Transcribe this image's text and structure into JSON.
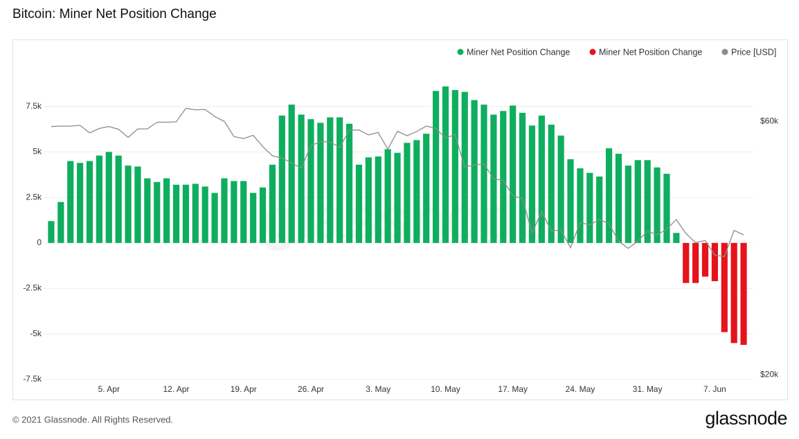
{
  "title": "Bitcoin: Miner Net Position Change",
  "footer": "© 2021 Glassnode. All Rights Reserved.",
  "brand": "glassnode",
  "watermark": "glassnode",
  "chart_data": {
    "type": "bar",
    "categories": [
      null,
      null,
      null,
      null,
      null,
      null,
      "5. Apr",
      null,
      null,
      null,
      null,
      null,
      null,
      "12. Apr",
      null,
      null,
      null,
      null,
      null,
      null,
      "19. Apr",
      null,
      null,
      null,
      null,
      null,
      null,
      "26. Apr",
      null,
      null,
      null,
      null,
      null,
      null,
      "3. May",
      null,
      null,
      null,
      null,
      null,
      null,
      "10. May",
      null,
      null,
      null,
      null,
      null,
      null,
      "17. May",
      null,
      null,
      null,
      null,
      null,
      null,
      "24. May",
      null,
      null,
      null,
      null,
      null,
      null,
      "31. May",
      null,
      null,
      null,
      null,
      null,
      null,
      "7. Jun",
      null,
      null,
      null
    ],
    "series": [
      {
        "name": "Miner Net Position Change",
        "color": "#0fae5f",
        "values": [
          1200,
          2250,
          4500,
          4400,
          4500,
          4800,
          5000,
          4800,
          4250,
          4200,
          3550,
          3350,
          3550,
          3200,
          3200,
          3250,
          3100,
          2750,
          3550,
          3400,
          3400,
          2750,
          3050,
          4300,
          7000,
          7600,
          7050,
          6800,
          6600,
          6900,
          6900,
          6550,
          4300,
          4700,
          4750,
          5150,
          4950,
          5500,
          5650,
          6000,
          8350,
          8600,
          8400,
          8300,
          7850,
          7600,
          7050,
          7250,
          7550,
          7150,
          6450,
          7000,
          6500,
          5900,
          4600,
          4100,
          3850,
          3650,
          5200,
          4900,
          4250,
          4550,
          4550,
          4150,
          3800,
          550,
          null,
          null,
          null,
          null,
          null,
          null,
          null
        ]
      },
      {
        "name": "Miner Net Position Change",
        "color": "#e5141c",
        "values": [
          null,
          null,
          null,
          null,
          null,
          null,
          null,
          null,
          null,
          null,
          null,
          null,
          null,
          null,
          null,
          null,
          null,
          null,
          null,
          null,
          null,
          null,
          null,
          null,
          null,
          null,
          null,
          null,
          null,
          null,
          null,
          null,
          null,
          null,
          null,
          null,
          null,
          null,
          null,
          null,
          null,
          null,
          null,
          null,
          null,
          null,
          null,
          null,
          null,
          null,
          null,
          null,
          null,
          null,
          null,
          null,
          null,
          null,
          null,
          null,
          null,
          null,
          null,
          null,
          null,
          null,
          -2200,
          -2200,
          -1850,
          -2100,
          -4900,
          -5500,
          -5600
        ]
      },
      {
        "name": "Price [USD]",
        "color": "#8c8c8c",
        "type": "line",
        "axis": "y2",
        "values": [
          58700,
          58800,
          58800,
          59000,
          57100,
          58200,
          58700,
          58000,
          56000,
          58100,
          58100,
          59800,
          59800,
          59900,
          63500,
          63100,
          63200,
          61300,
          60000,
          56200,
          55700,
          56500,
          53800,
          51700,
          51200,
          50100,
          49000,
          54000,
          55000,
          54900,
          53600,
          57800,
          57800,
          56600,
          57200,
          53200,
          57500,
          56400,
          57400,
          58800,
          58200,
          55800,
          56700,
          49200,
          49700,
          49900,
          46800,
          46400,
          43500,
          42900,
          37000,
          40600,
          37300,
          37500,
          34700,
          38700,
          38300,
          39200,
          38500,
          35700,
          34600,
          35700,
          37300,
          36700,
          37600,
          39200,
          36900,
          35500,
          35800,
          33600,
          33400,
          37400,
          36700
        ]
      }
    ],
    "ylim": [
      -7500,
      10000
    ],
    "yticks": [
      {
        "value": -7500,
        "label": "-7.5k"
      },
      {
        "value": -5000,
        "label": "-5k"
      },
      {
        "value": -2500,
        "label": "-2.5k"
      },
      0,
      {
        "value": 2500,
        "label": "2.5k"
      },
      {
        "value": 5000,
        "label": "5k"
      },
      {
        "value": 7500,
        "label": "7.5k"
      }
    ],
    "y2lim": [
      19600,
      78000
    ],
    "y2ticks": [
      {
        "value": 20000,
        "label": "$20k"
      },
      {
        "value": 60000,
        "label": "$60k"
      }
    ],
    "y2log": true,
    "grid": true,
    "legend": "top-right"
  }
}
